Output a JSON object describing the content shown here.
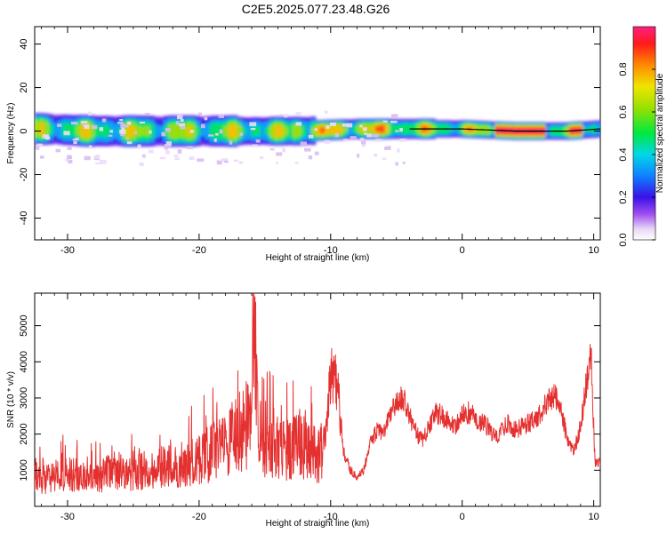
{
  "title": "C2E5.2025.077.23.48.G26",
  "chart_data": [
    {
      "type": "heatmap",
      "xlabel": "Height of straight line (km)",
      "ylabel": "Frequency (Hz)",
      "xlim": [
        -32.5,
        10.5
      ],
      "ylim": [
        -50,
        48
      ],
      "xticks": [
        -30,
        -20,
        -10,
        0,
        10
      ],
      "yticks": [
        -40,
        -20,
        0,
        20,
        40
      ],
      "colorbar": {
        "label": "Normalized spectral amplitude",
        "range": [
          0,
          1
        ],
        "ticks": [
          "0.0",
          "0.2",
          "0.4",
          "0.6",
          "0.8"
        ],
        "tick_values": [
          0,
          0.2,
          0.4,
          0.6,
          0.8
        ]
      },
      "ridge": [
        {
          "x": -32,
          "f": 1
        },
        {
          "x": -28,
          "f": 0
        },
        {
          "x": -24,
          "f": 0
        },
        {
          "x": -20,
          "f": 0
        },
        {
          "x": -16,
          "f": 0
        },
        {
          "x": -12,
          "f": 0
        },
        {
          "x": -8,
          "f": 1
        },
        {
          "x": -4,
          "f": 1
        },
        {
          "x": 0,
          "f": 1
        },
        {
          "x": 4,
          "f": 0
        },
        {
          "x": 8,
          "f": 0
        },
        {
          "x": 10.5,
          "f": 1
        }
      ]
    },
    {
      "type": "line",
      "xlabel": "Height of straight line (km)",
      "ylabel": "SNR (10 * v/v)",
      "xlim": [
        -32.5,
        10.5
      ],
      "ylim": [
        0,
        5900
      ],
      "xticks": [
        -30,
        -20,
        -10,
        0,
        10
      ],
      "yticks": [
        1000,
        2000,
        3000,
        4000,
        5000
      ],
      "color": "#e53030",
      "series": [
        {
          "x": [
            -32.5,
            -32,
            -31,
            -30,
            -29,
            -28,
            -27,
            -26,
            -25,
            -24,
            -23,
            -22,
            -21,
            -20,
            -19,
            -18,
            -17.3,
            -17,
            -16.5,
            -16,
            -15.8,
            -15.5,
            -15,
            -14.5,
            -14,
            -13,
            -12.5,
            -12,
            -11.5,
            -11,
            -10.5,
            -10.2,
            -10,
            -9.8,
            -9.5,
            -9,
            -8.5,
            -8,
            -7.5,
            -7,
            -6.5,
            -6,
            -5.5,
            -5,
            -4.5,
            -4,
            -3.6,
            -3,
            -2.5,
            -2,
            -1.5,
            -1,
            -0.5,
            0,
            0.5,
            1,
            1.5,
            2,
            2.5,
            3,
            3.5,
            4,
            4.5,
            5,
            5.5,
            6,
            6.5,
            7,
            7.5,
            8,
            8.5,
            9,
            9.4,
            9.8,
            10.1,
            10.5
          ],
          "y": [
            900,
            700,
            800,
            900,
            850,
            800,
            900,
            950,
            900,
            1000,
            1050,
            1100,
            1200,
            1300,
            1500,
            1600,
            2000,
            1800,
            2200,
            2400,
            4500,
            2000,
            1800,
            1700,
            1500,
            1600,
            1800,
            1600,
            1500,
            1400,
            1700,
            2800,
            3800,
            3600,
            3300,
            1500,
            1000,
            800,
            1000,
            1700,
            2100,
            2000,
            2500,
            2900,
            3000,
            2500,
            2100,
            1800,
            2200,
            2600,
            2500,
            2400,
            2200,
            2500,
            2600,
            2450,
            2300,
            2200,
            1900,
            2100,
            2300,
            2100,
            2200,
            2300,
            2400,
            2600,
            2900,
            3100,
            2700,
            1800,
            1500,
            2200,
            3300,
            4200,
            1200,
            1200
          ]
        }
      ]
    }
  ]
}
